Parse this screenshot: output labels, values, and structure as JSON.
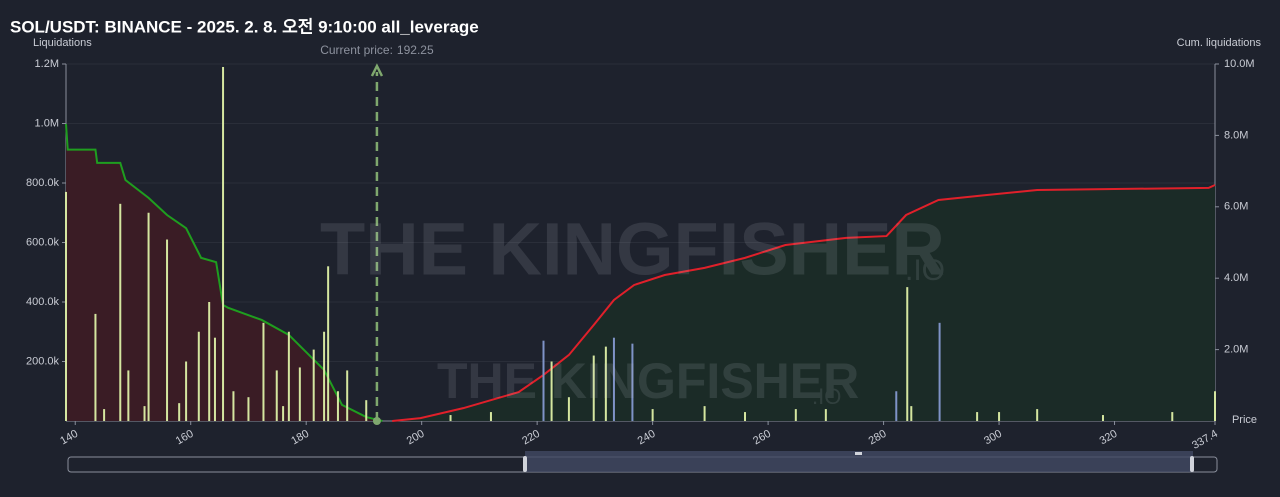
{
  "chart_data": {
    "type": "bar",
    "title": "SOL/USDT: BINANCE - 2025. 2. 8. 오전 9:10:00 all_leverage",
    "y_label": "Liquidations",
    "y2_label": "Cum. liquidations",
    "x_label": "Price",
    "watermark": "THE KINGFISHER",
    "watermark_suffix": ".IO",
    "current_price_label": "Current price:",
    "current_price": 192.25,
    "xlim": [
      138.4,
      337.4
    ],
    "xticks": [
      140,
      160,
      180,
      200,
      220,
      240,
      260,
      280,
      300,
      320,
      337.4
    ],
    "ylim": [
      0,
      1200000
    ],
    "yticks": [
      {
        "value": 200000,
        "label": "200.0k"
      },
      {
        "value": 400000,
        "label": "400.0k"
      },
      {
        "value": 600000,
        "label": "600.0k"
      },
      {
        "value": 800000,
        "label": "800.0k"
      },
      {
        "value": 1000000,
        "label": "1.0M"
      },
      {
        "value": 1200000,
        "label": "1.2M"
      }
    ],
    "y2lim": [
      0,
      10000000
    ],
    "y2ticks": [
      {
        "value": 2000000,
        "label": "2.0M"
      },
      {
        "value": 4000000,
        "label": "4.0M"
      },
      {
        "value": 6000000,
        "label": "6.0M"
      },
      {
        "value": 8000000,
        "label": "8.0M"
      },
      {
        "value": 10000000,
        "label": "10.0M"
      }
    ],
    "grid": true,
    "series": [
      {
        "type": "bar",
        "color": "#d5e6a0",
        "x": [
          138.4,
          143.5,
          145,
          147.8,
          149.2,
          152,
          152.7,
          155.9,
          158,
          159.2,
          161.4,
          163.2,
          164.2,
          165.6,
          167.4,
          170,
          172.6,
          174.9,
          176,
          177.0,
          178.9,
          181.3,
          183.1,
          183.8,
          185.5,
          187.1,
          190.4,
          205,
          212,
          222.5,
          225.5,
          229.8,
          231.9,
          240,
          249.0,
          256,
          264.8,
          270,
          284.1,
          284.8,
          296.2,
          300,
          306.6,
          318,
          330,
          337.4
        ],
        "values": [
          770000,
          360000,
          40000,
          730000,
          170000,
          50000,
          700000,
          610000,
          60000,
          200000,
          300000,
          400000,
          280000,
          1190000,
          100000,
          80000,
          330000,
          170000,
          50000,
          300000,
          180000,
          240000,
          300000,
          520000,
          100000,
          170000,
          70000,
          20000,
          30000,
          200000,
          80000,
          220000,
          250000,
          40000,
          50000,
          30000,
          40000,
          40000,
          450000,
          50000,
          30000,
          30000,
          40000,
          20000,
          30000,
          100000
        ]
      },
      {
        "type": "bar",
        "color": "#7f93c7",
        "x": [
          221.1,
          233.3,
          236.5,
          282.2,
          289.7
        ],
        "values": [
          270000,
          280000,
          260000,
          100000,
          330000
        ]
      },
      {
        "type": "area",
        "axis": "y2",
        "color": "#1f9e1f",
        "fill": "#3a1c25",
        "x": [
          138.4,
          138.7,
          143.5,
          143.8,
          147.8,
          148.7,
          152.7,
          155.9,
          159.2,
          161.8,
          164.4,
          165.6,
          166.5,
          172.3,
          177.0,
          183.1,
          186.2,
          190.4,
          193.2
        ],
        "values": [
          8320000,
          7600000,
          7600000,
          7230000,
          7230000,
          6750000,
          6250000,
          5770000,
          5400000,
          4570000,
          4450000,
          3250000,
          3170000,
          2830000,
          2410000,
          1430000,
          450000,
          110000,
          0
        ]
      },
      {
        "type": "area",
        "axis": "y2",
        "color": "#e0202a",
        "fill": "#1b2b27",
        "x": [
          194.9,
          199.8,
          207.2,
          216.8,
          221.1,
          225.5,
          229.8,
          233.3,
          236.8,
          242.1,
          249.0,
          256.0,
          263.0,
          273.5,
          280.5,
          283.9,
          289.5,
          297.9,
          306.6,
          336.3,
          337.4
        ],
        "values": [
          0,
          80000,
          360000,
          810000,
          1290000,
          1850000,
          2690000,
          3390000,
          3810000,
          4090000,
          4290000,
          4570000,
          4930000,
          5130000,
          5180000,
          5770000,
          6190000,
          6330000,
          6470000,
          6530000,
          6610000
        ]
      }
    ]
  }
}
